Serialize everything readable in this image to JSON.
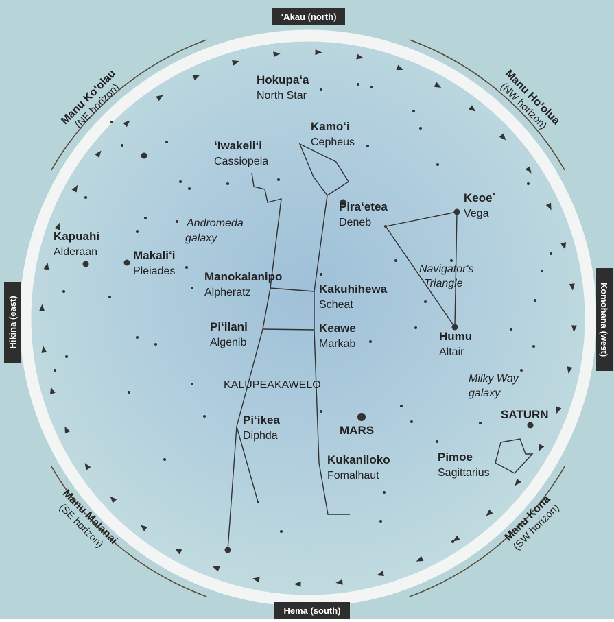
{
  "directions": {
    "north": "ʻAkau (north)",
    "south": "Hema (south)",
    "east": "Hikina (east)",
    "west": "Komohana (west)"
  },
  "horizons": [
    {
      "name": "Manu Koʻolau",
      "sub": "(NE horizon)"
    },
    {
      "name": "Manu Hoʻolua",
      "sub": "(NW horizon)"
    },
    {
      "name": "Manu Malanai",
      "sub": "(SE horizon)"
    },
    {
      "name": "Manu Kona",
      "sub": "(SW horizon)"
    }
  ],
  "stars": [
    {
      "name": "Hokupaʻa",
      "english": "North Star"
    },
    {
      "name": "Kamoʻi",
      "english": "Cepheus"
    },
    {
      "name": "ʻIwakeliʻi",
      "english": "Cassiopeia"
    },
    {
      "name": "Piraʻetea",
      "english": "Deneb"
    },
    {
      "name": "Keoe",
      "english": "Vega"
    },
    {
      "name": "Kapuahi",
      "english": "Alderaan"
    },
    {
      "name": "Makaliʻi",
      "english": "Pleiades"
    },
    {
      "name": "Manokalanipo",
      "english": "Alpheratz"
    },
    {
      "name": "Kakuhihewa",
      "english": "Scheat"
    },
    {
      "name": "Piʻilani",
      "english": "Algenib"
    },
    {
      "name": "Keawe",
      "english": "Markab"
    },
    {
      "name": "Humu",
      "english": "Altair"
    },
    {
      "name": "Piʻikea",
      "english": "Diphda"
    },
    {
      "name": "Kukaniloko",
      "english": "Fomalhaut"
    },
    {
      "name": "Pimoe",
      "english": "Sagittarius"
    }
  ],
  "labels": {
    "andromeda": [
      "Andromeda",
      "galaxy"
    ],
    "triangle": [
      "Navigator's",
      "Triangle"
    ],
    "milky_way": [
      "Milky Way",
      "galaxy"
    ],
    "constellation": "KALUPEAKAWELO",
    "mars": "MARS",
    "saturn": "SATURN"
  }
}
